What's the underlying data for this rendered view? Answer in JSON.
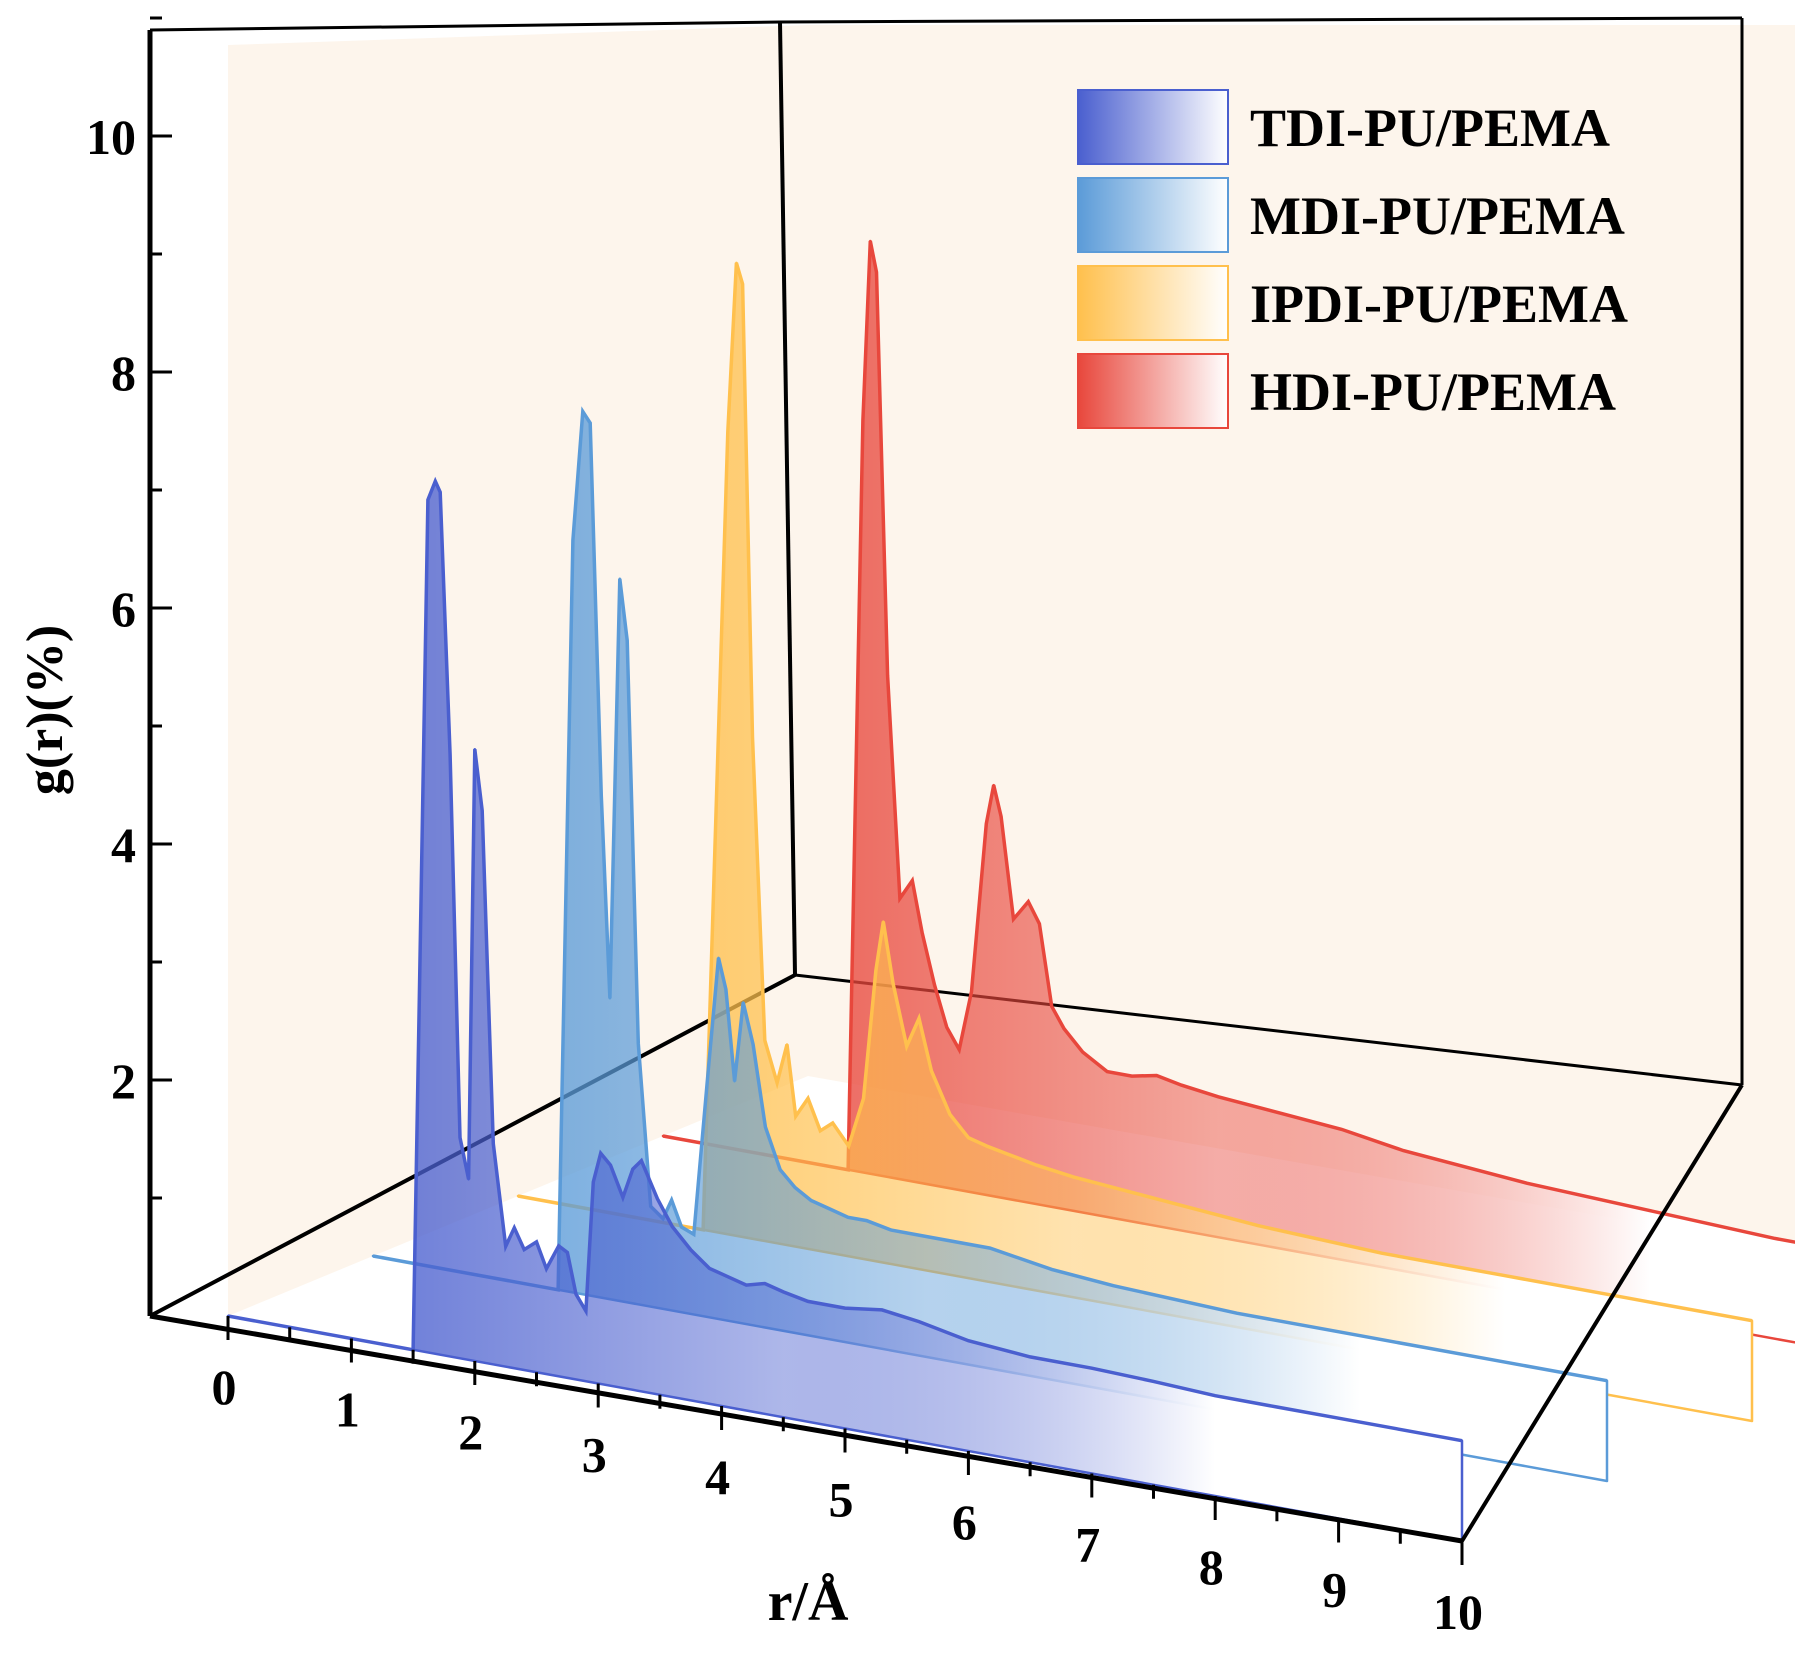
{
  "chart_data": {
    "type": "line",
    "subtype": "3d-waterfall-filled",
    "title": "",
    "xlabel": "r/Å",
    "ylabel": "g(r)(%)",
    "xlim": [
      0,
      10
    ],
    "ylim": [
      0,
      11
    ],
    "x_ticks": [
      "0",
      "1",
      "2",
      "3",
      "4",
      "5",
      "6",
      "7",
      "8",
      "9",
      "10"
    ],
    "y_ticks": [
      "2",
      "4",
      "6",
      "8",
      "10"
    ],
    "legend_position": "top-right",
    "grid": false,
    "series": [
      {
        "name": "TDI-PU/PEMA",
        "color": "#4a5fcf",
        "points": [
          [
            0,
            0
          ],
          [
            1.5,
            0
          ],
          [
            1.55,
            3.5
          ],
          [
            1.62,
            8.5
          ],
          [
            1.68,
            8.7
          ],
          [
            1.72,
            8.6
          ],
          [
            1.8,
            6
          ],
          [
            1.88,
            2.2
          ],
          [
            1.95,
            1.8
          ],
          [
            2.0,
            6.1
          ],
          [
            2.06,
            5.5
          ],
          [
            2.15,
            2.2
          ],
          [
            2.25,
            1.2
          ],
          [
            2.32,
            1.4
          ],
          [
            2.4,
            1.2
          ],
          [
            2.5,
            1.3
          ],
          [
            2.58,
            1.05
          ],
          [
            2.68,
            1.3
          ],
          [
            2.75,
            1.25
          ],
          [
            2.82,
            0.85
          ],
          [
            2.9,
            0.7
          ],
          [
            2.96,
            2.0
          ],
          [
            3.02,
            2.3
          ],
          [
            3.1,
            2.2
          ],
          [
            3.2,
            1.9
          ],
          [
            3.28,
            2.2
          ],
          [
            3.35,
            2.3
          ],
          [
            3.48,
            1.95
          ],
          [
            3.6,
            1.7
          ],
          [
            3.75,
            1.5
          ],
          [
            3.9,
            1.35
          ],
          [
            4.05,
            1.3
          ],
          [
            4.2,
            1.25
          ],
          [
            4.35,
            1.3
          ],
          [
            4.5,
            1.25
          ],
          [
            4.7,
            1.2
          ],
          [
            5.0,
            1.2
          ],
          [
            5.3,
            1.25
          ],
          [
            5.6,
            1.2
          ],
          [
            6.0,
            1.1
          ],
          [
            6.5,
            1.05
          ],
          [
            7.0,
            1.05
          ],
          [
            7.5,
            1.03
          ],
          [
            8.0,
            1.0
          ],
          [
            8.5,
            1.0
          ],
          [
            9.0,
            1.0
          ],
          [
            10,
            1.0
          ]
        ]
      },
      {
        "name": "MDI-PU/PEMA",
        "color": "#5b9bd8",
        "points": [
          [
            0,
            0
          ],
          [
            1.5,
            0
          ],
          [
            1.62,
            7.5
          ],
          [
            1.7,
            8.8
          ],
          [
            1.76,
            8.7
          ],
          [
            1.85,
            5
          ],
          [
            1.92,
            3
          ],
          [
            2.0,
            7.2
          ],
          [
            2.06,
            6.6
          ],
          [
            2.15,
            2.6
          ],
          [
            2.25,
            1.0
          ],
          [
            2.35,
            0.9
          ],
          [
            2.42,
            1.1
          ],
          [
            2.5,
            0.85
          ],
          [
            2.6,
            0.8
          ],
          [
            2.72,
            2.5
          ],
          [
            2.8,
            3.6
          ],
          [
            2.86,
            3.3
          ],
          [
            2.93,
            2.4
          ],
          [
            3.0,
            3.2
          ],
          [
            3.08,
            2.8
          ],
          [
            3.18,
            2.0
          ],
          [
            3.3,
            1.6
          ],
          [
            3.42,
            1.45
          ],
          [
            3.55,
            1.35
          ],
          [
            3.7,
            1.3
          ],
          [
            3.85,
            1.25
          ],
          [
            4.0,
            1.25
          ],
          [
            4.2,
            1.2
          ],
          [
            4.5,
            1.2
          ],
          [
            5.0,
            1.2
          ],
          [
            5.5,
            1.1
          ],
          [
            6.0,
            1.05
          ],
          [
            7.0,
            1.0
          ],
          [
            8.0,
            1.0
          ],
          [
            9.0,
            1.0
          ],
          [
            10,
            1.0
          ]
        ]
      },
      {
        "name": "IPDI-PU/PEMA",
        "color": "#ffc04d",
        "points": [
          [
            0,
            0
          ],
          [
            1.5,
            0
          ],
          [
            1.7,
            8.0
          ],
          [
            1.77,
            9.7
          ],
          [
            1.82,
            9.5
          ],
          [
            1.9,
            5
          ],
          [
            2.0,
            2.0
          ],
          [
            2.1,
            1.6
          ],
          [
            2.18,
            2.0
          ],
          [
            2.25,
            1.3
          ],
          [
            2.35,
            1.5
          ],
          [
            2.45,
            1.2
          ],
          [
            2.55,
            1.3
          ],
          [
            2.68,
            1.1
          ],
          [
            2.8,
            1.6
          ],
          [
            2.9,
            2.9
          ],
          [
            2.96,
            3.4
          ],
          [
            3.04,
            2.8
          ],
          [
            3.15,
            2.2
          ],
          [
            3.25,
            2.5
          ],
          [
            3.35,
            2.0
          ],
          [
            3.5,
            1.6
          ],
          [
            3.65,
            1.4
          ],
          [
            3.8,
            1.35
          ],
          [
            4.0,
            1.3
          ],
          [
            4.2,
            1.25
          ],
          [
            4.5,
            1.2
          ],
          [
            5.0,
            1.15
          ],
          [
            5.5,
            1.1
          ],
          [
            6.0,
            1.05
          ],
          [
            7.0,
            1.0
          ],
          [
            8.0,
            1.0
          ],
          [
            9.0,
            1.0
          ],
          [
            10,
            1.0
          ]
        ]
      },
      {
        "name": "HDI-PU/PEMA",
        "color": "#e8473c",
        "points": [
          [
            0,
            0
          ],
          [
            1.5,
            0
          ],
          [
            1.62,
            7.5
          ],
          [
            1.68,
            9.3
          ],
          [
            1.73,
            9.0
          ],
          [
            1.82,
            5
          ],
          [
            1.92,
            2.8
          ],
          [
            2.02,
            3.0
          ],
          [
            2.1,
            2.5
          ],
          [
            2.2,
            2.0
          ],
          [
            2.3,
            1.6
          ],
          [
            2.4,
            1.4
          ],
          [
            2.5,
            2.0
          ],
          [
            2.62,
            3.7
          ],
          [
            2.68,
            4.1
          ],
          [
            2.74,
            3.8
          ],
          [
            2.84,
            2.8
          ],
          [
            2.96,
            3.0
          ],
          [
            3.05,
            2.8
          ],
          [
            3.15,
            2.0
          ],
          [
            3.25,
            1.8
          ],
          [
            3.4,
            1.6
          ],
          [
            3.6,
            1.45
          ],
          [
            3.8,
            1.45
          ],
          [
            4.0,
            1.5
          ],
          [
            4.2,
            1.45
          ],
          [
            4.5,
            1.4
          ],
          [
            5.0,
            1.35
          ],
          [
            5.5,
            1.3
          ],
          [
            6.0,
            1.2
          ],
          [
            7.0,
            1.1
          ],
          [
            8.0,
            1.05
          ],
          [
            9.0,
            1.0
          ],
          [
            10,
            1.0
          ]
        ]
      }
    ]
  }
}
